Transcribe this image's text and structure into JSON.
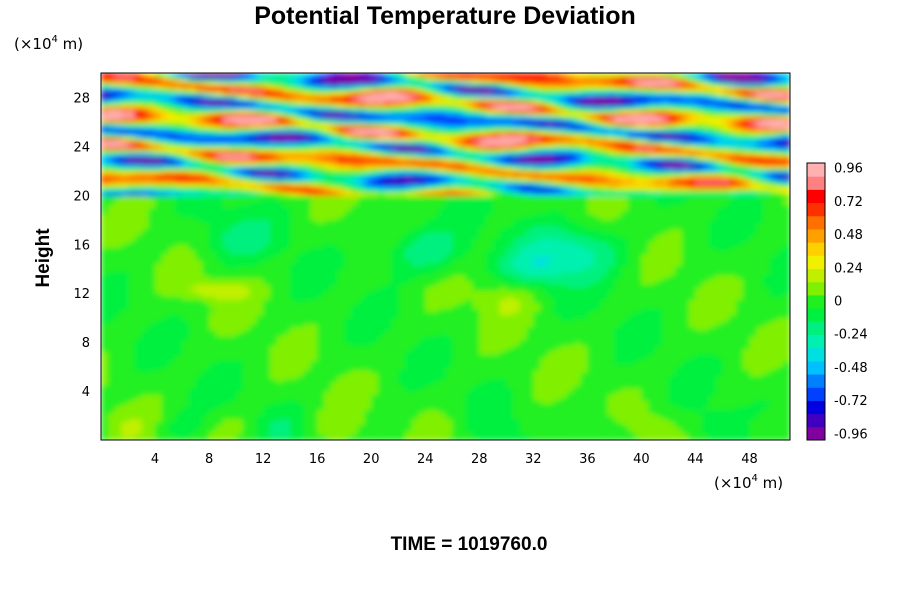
{
  "chart_data": {
    "type": "heatmap",
    "title": "Potential Temperature Deviation",
    "ylabel": "Height",
    "x_units": {
      "prefix": "(×10",
      "exponent": "4",
      "suffix": " m)"
    },
    "y_units": {
      "prefix": "(×10",
      "exponent": "4",
      "suffix": " m)"
    },
    "x_range": [
      0,
      51
    ],
    "y_range": [
      0,
      30
    ],
    "x_ticks": [
      4,
      8,
      12,
      16,
      20,
      24,
      28,
      32,
      36,
      40,
      44,
      48
    ],
    "y_ticks": [
      4,
      8,
      12,
      16,
      20,
      24,
      28
    ],
    "colorbar": {
      "range": [
        -1.0,
        1.0
      ],
      "tick_values": [
        0.96,
        0.72,
        0.48,
        0.24,
        0,
        -0.24,
        -0.48,
        -0.72,
        -0.96
      ],
      "tick_labels": [
        "0.96",
        "0.72",
        "0.48",
        "0.24",
        "0",
        "-0.24",
        "-0.48",
        "-0.72",
        "-0.96"
      ],
      "colors": [
        "#8000a0",
        "#4000c0",
        "#0000e0",
        "#0040ff",
        "#0080ff",
        "#00c0ff",
        "#00e0e0",
        "#00f0b0",
        "#00f080",
        "#00f040",
        "#20f020",
        "#80f000",
        "#c0f000",
        "#f0f000",
        "#ffd000",
        "#ffa000",
        "#ff7000",
        "#ff3000",
        "#ff0000",
        "#ff8080",
        "#ffb0b0"
      ]
    },
    "field_description": {
      "lower_layer": {
        "height_range": [
          0,
          20
        ],
        "value": "near 0 (mostly -0.1 to 0.1, with patches near -0.3 and 0.2)"
      },
      "upper_layer": {
        "height_range": [
          20,
          30
        ],
        "value": "alternating bands from -0.96 to 0.96"
      }
    }
  },
  "footer": {
    "time_label": "TIME = 1019760.0"
  }
}
